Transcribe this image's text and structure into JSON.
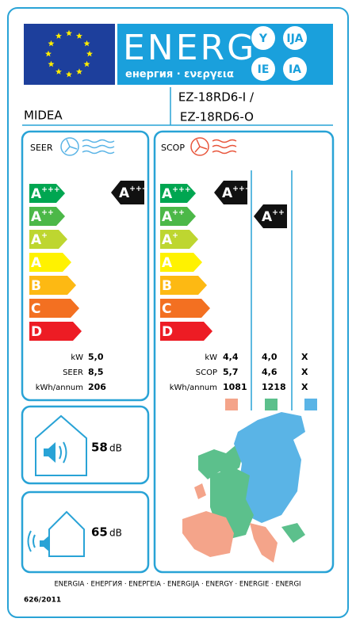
{
  "header": {
    "title": "ENERG",
    "subtitle": "енергия · ενεργεια",
    "languages": [
      "Y",
      "IJA",
      "IE",
      "IA"
    ]
  },
  "supplier": "MIDEA",
  "model": [
    "EZ-18RD6-I /",
    "EZ-18RD6-O"
  ],
  "classes": [
    {
      "letter": "A",
      "sup": "+++",
      "color": "#00a651"
    },
    {
      "letter": "A",
      "sup": "++",
      "color": "#4cb848"
    },
    {
      "letter": "A",
      "sup": "+",
      "color": "#bed630"
    },
    {
      "letter": "A",
      "color": "#fff200"
    },
    {
      "letter": "B",
      "color": "#fdb913"
    },
    {
      "letter": "C",
      "color": "#f37021"
    },
    {
      "letter": "D",
      "color": "#ed1c24"
    }
  ],
  "seer": {
    "label": "SEER",
    "rating": {
      "letter": "A",
      "sup": "+++"
    },
    "rows": [
      [
        "kW",
        "5,0"
      ],
      [
        "SEER",
        "8,5"
      ],
      [
        "kWh/annum",
        "206"
      ]
    ]
  },
  "scop": {
    "label": "SCOP",
    "ratings": [
      {
        "letter": "A",
        "sup": "+++"
      },
      {
        "letter": "A",
        "sup": "++"
      }
    ],
    "rows": [
      [
        "kW",
        "4,4",
        "4,0",
        "X"
      ],
      [
        "SCOP",
        "5,7",
        "4,6",
        "X"
      ],
      [
        "kWh/annum",
        "1081",
        "1218",
        "X"
      ]
    ],
    "zone_colors": [
      "#f4a48a",
      "#5cc08c",
      "#5ab4e6"
    ]
  },
  "noise": [
    {
      "value": "58",
      "unit": "dB"
    },
    {
      "value": "65",
      "unit": "dB"
    }
  ],
  "footer": {
    "languages": "ENERGIA · ЕНЕРГИЯ · ΕΝΕΡΓΕΙΑ · ENERGIJA · ENERGY · ENERGIE · ENERGI",
    "regulation": "626/2011"
  }
}
